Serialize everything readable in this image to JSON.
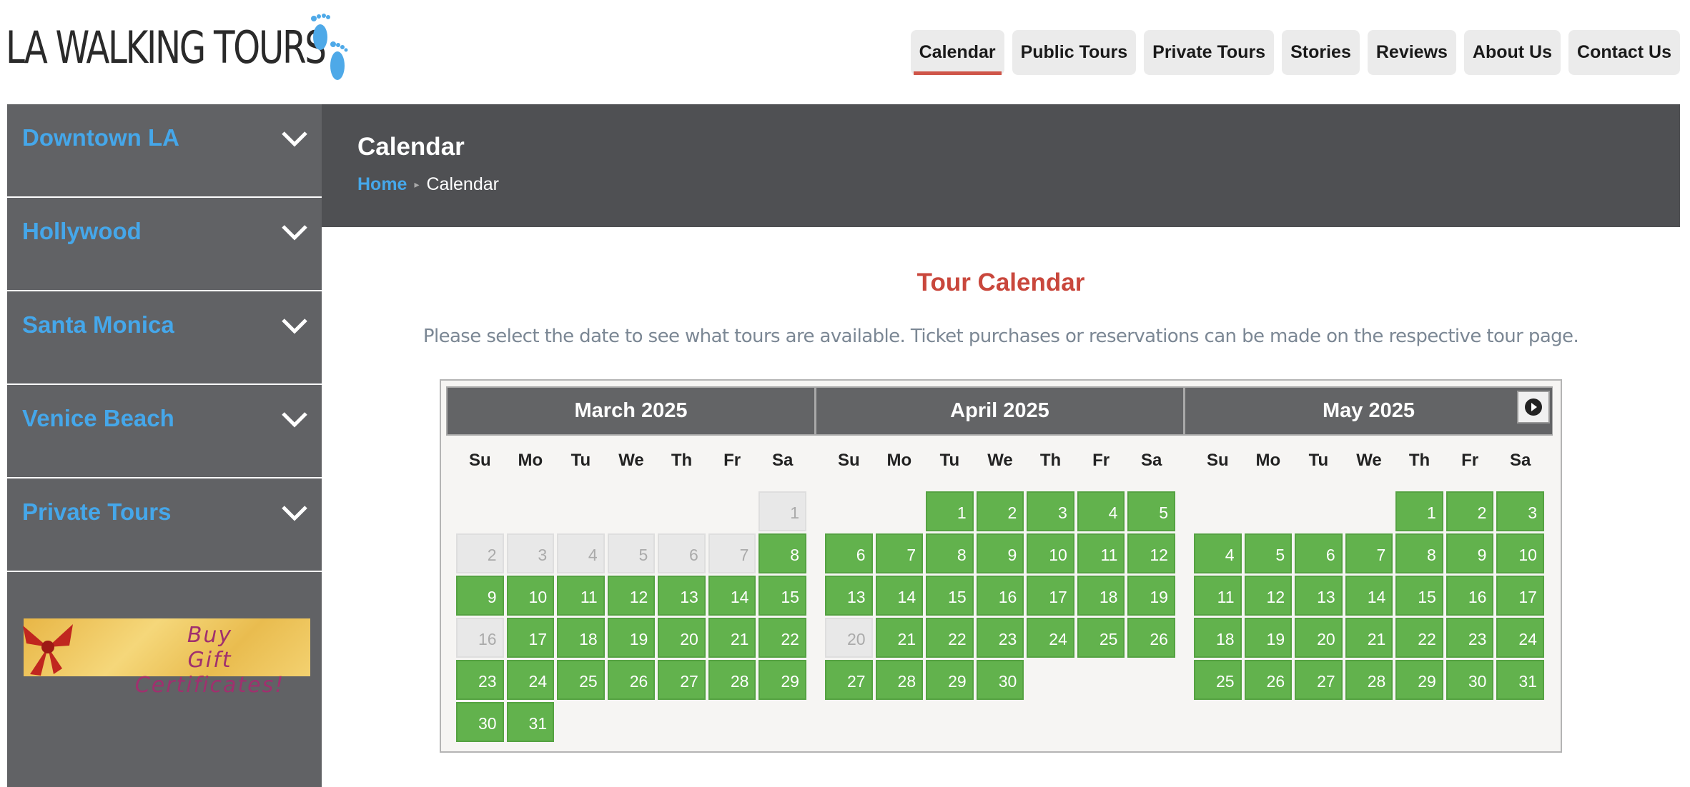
{
  "logo": {
    "text": "LA WALKING TOURS",
    "icon": "footprints-icon",
    "icon_color": "#4ea9e8"
  },
  "nav": {
    "items": [
      {
        "label": "Calendar",
        "active": true
      },
      {
        "label": "Public Tours"
      },
      {
        "label": "Private Tours"
      },
      {
        "label": "Stories"
      },
      {
        "label": "Reviews"
      },
      {
        "label": "About Us"
      },
      {
        "label": "Contact Us"
      }
    ],
    "active_color": "#cf5549"
  },
  "sidebar": {
    "items": [
      {
        "label": "Downtown LA"
      },
      {
        "label": "Hollywood"
      },
      {
        "label": "Santa Monica"
      },
      {
        "label": "Venice Beach"
      },
      {
        "label": "Private Tours"
      }
    ],
    "gift": {
      "line1": "Buy",
      "line2": "Gift Certificates!"
    }
  },
  "header": {
    "title": "Calendar",
    "breadcrumb": {
      "home": "Home",
      "current": "Calendar"
    }
  },
  "main": {
    "title": "Tour Calendar",
    "description": "Please select the date to see what tours are available. Ticket purchases or reservations can be made on the respective tour page."
  },
  "calendar": {
    "weekdays": [
      "Su",
      "Mo",
      "Tu",
      "We",
      "Th",
      "Fr",
      "Sa"
    ],
    "next_icon": "next-arrow-icon",
    "colors": {
      "available": "#62b24d",
      "unavailable": "#e8e8e8"
    },
    "months": [
      {
        "name": "March 2025",
        "start_weekday": 6,
        "days": 31,
        "unavailable": [
          1,
          2,
          3,
          4,
          5,
          6,
          7,
          16
        ]
      },
      {
        "name": "April 2025",
        "start_weekday": 2,
        "days": 30,
        "unavailable": [
          20
        ]
      },
      {
        "name": "May 2025",
        "start_weekday": 4,
        "days": 31,
        "unavailable": []
      }
    ]
  }
}
